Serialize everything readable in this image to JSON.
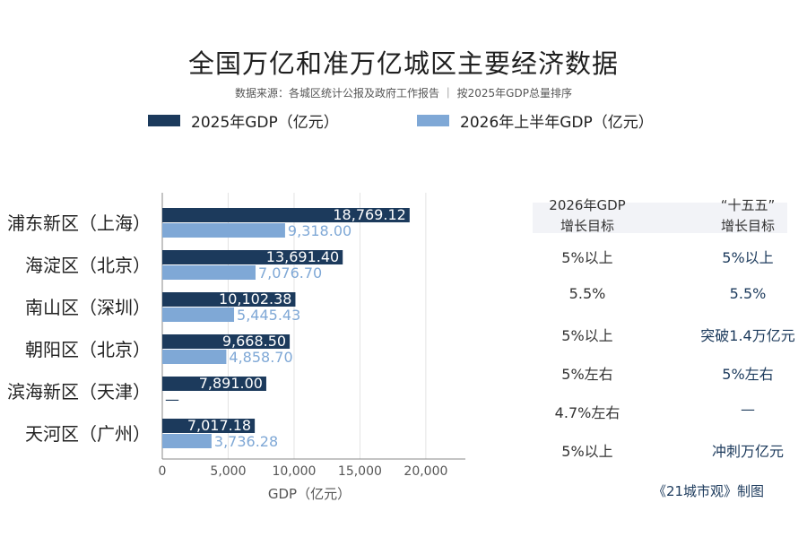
{
  "title": "全国万亿和准万亿城区主要经济数据",
  "subtitle": "数据来源：各城区统计公报及政府工作报告 ｜ 按2025年GDP总量排序",
  "colors": {
    "dark": "#1c3a5c",
    "light": "#7fa8d6",
    "grid": "#e3e3e3"
  },
  "chart_data": {
    "type": "bar",
    "orientation": "horizontal",
    "categories": [
      "浦东新区（上海）",
      "海淀区（北京）",
      "南山区（深圳）",
      "朝阳区（北京）",
      "滨海新区（天津）",
      "天河区（广州）"
    ],
    "series": [
      {
        "name": "2025年GDP（亿元）",
        "values": [
          18769.12,
          13691.4,
          10102.38,
          9668.5,
          7891.0,
          7017.18
        ],
        "labels": [
          "18,769.12",
          "13,691.40",
          "10,102.38",
          "9,668.50",
          "7,891.00",
          "7,017.18"
        ]
      },
      {
        "name": "2026年上半年GDP（亿元）",
        "values": [
          9318.0,
          7076.7,
          5445.43,
          4858.7,
          null,
          3736.28
        ],
        "labels": [
          "9,318.00",
          "7,076.70",
          "5,445.43",
          "4,858.70",
          "—",
          "3,736.28"
        ]
      }
    ],
    "xlabel": "GDP（亿元）",
    "xlim": [
      0,
      23000
    ],
    "xticks": [
      0,
      5000,
      10000,
      15000,
      20000
    ],
    "xtick_labels": [
      "0",
      "5,000",
      "10,000",
      "15,000",
      "20,000"
    ],
    "grid": true,
    "legend": "top"
  },
  "table": {
    "headers": [
      [
        "2026年GDP",
        "增长目标"
      ],
      [
        "“十五五”",
        "增长目标"
      ]
    ],
    "rows": [
      [
        "5%以上",
        "5%以上"
      ],
      [
        "5.5%",
        "5.5%"
      ],
      [
        "5%以上",
        "突破1.4万亿元"
      ],
      [
        "5%左右",
        "5%左右"
      ],
      [
        "4.7%左右",
        "—"
      ],
      [
        "5%以上",
        "冲刺万亿元"
      ]
    ]
  },
  "credit": "《21城市观》制图"
}
